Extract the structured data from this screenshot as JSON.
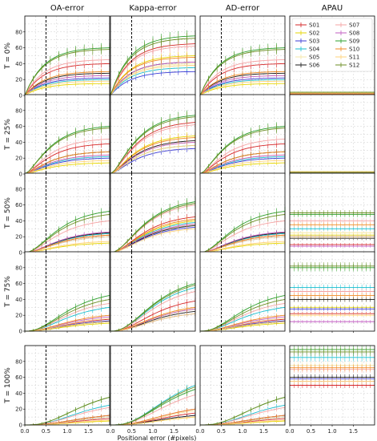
{
  "chart_data": {
    "type": "line",
    "columns": [
      "OA-error",
      "Kappa-error",
      "AD-error",
      "APAU"
    ],
    "rows": [
      "T = 0%",
      "T = 25%",
      "T = 50%",
      "T = 75%",
      "T = 100%"
    ],
    "xlabel": "Positional error (#pixels)",
    "xlim": [
      0.0,
      2.0
    ],
    "xticks": [
      "0.0",
      "0.5",
      "1.0",
      "1.5",
      "0.0",
      "0.5",
      "1.0",
      "1.5",
      "0.0",
      "0.5",
      "1.0",
      "1.5",
      "0.0",
      "0.5",
      "1.0",
      "1.5"
    ],
    "ylim": [
      0,
      100
    ],
    "yticks": [
      "0",
      "20",
      "40",
      "60",
      "80"
    ],
    "vline_x": 0.5,
    "grid": true,
    "legend_position": "top-right, inside APAU panel of first row",
    "series": [
      {
        "name": "S01",
        "color": "#d62728"
      },
      {
        "name": "S02",
        "color": "#e6d600"
      },
      {
        "name": "S03",
        "color": "#3b3bd6"
      },
      {
        "name": "S04",
        "color": "#17becf"
      },
      {
        "name": "S05",
        "color": "#f5e7a8"
      },
      {
        "name": "S06",
        "color": "#1a1a1a"
      },
      {
        "name": "S07",
        "color": "#f4a3a3"
      },
      {
        "name": "S08",
        "color": "#c25ec2"
      },
      {
        "name": "S09",
        "color": "#2ca02c"
      },
      {
        "name": "S10",
        "color": "#f08a24"
      },
      {
        "name": "S11",
        "color": "#ffd37a"
      },
      {
        "name": "S12",
        "color": "#6b8e23"
      }
    ],
    "metric_final_values": {
      "OA-error": [
        [
          40,
          15,
          22,
          20,
          25,
          28,
          45,
          25,
          60,
          30,
          18,
          58
        ],
        [
          38,
          14,
          20,
          22,
          24,
          28,
          44,
          24,
          60,
          28,
          17,
          58
        ],
        [
          22,
          12,
          20,
          24,
          20,
          25,
          40,
          26,
          52,
          22,
          14,
          48
        ],
        [
          15,
          10,
          13,
          30,
          16,
          12,
          35,
          18,
          45,
          20,
          12,
          40
        ],
        [
          8,
          5,
          10,
          25,
          10,
          12,
          22,
          12,
          35,
          12,
          6,
          35
        ]
      ],
      "Kappa-error": [
        [
          65,
          50,
          30,
          35,
          40,
          42,
          62,
          42,
          75,
          48,
          38,
          72
        ],
        [
          65,
          48,
          32,
          36,
          40,
          42,
          62,
          40,
          74,
          46,
          36,
          72
        ],
        [
          45,
          40,
          32,
          38,
          35,
          34,
          60,
          36,
          64,
          42,
          30,
          62
        ],
        [
          38,
          28,
          22,
          55,
          30,
          25,
          50,
          28,
          60,
          30,
          22,
          58
        ],
        [
          15,
          10,
          12,
          50,
          18,
          12,
          38,
          20,
          45,
          20,
          10,
          48
        ]
      ],
      "AD-error": [
        [
          40,
          15,
          22,
          20,
          25,
          28,
          45,
          25,
          60,
          30,
          18,
          58
        ],
        [
          38,
          14,
          20,
          22,
          24,
          28,
          44,
          24,
          60,
          28,
          17,
          58
        ],
        [
          22,
          12,
          20,
          24,
          20,
          25,
          40,
          26,
          52,
          22,
          14,
          48
        ],
        [
          15,
          10,
          13,
          30,
          16,
          12,
          35,
          18,
          45,
          20,
          12,
          40
        ],
        [
          8,
          5,
          10,
          25,
          10,
          12,
          22,
          12,
          35,
          12,
          6,
          35
        ]
      ]
    },
    "apau_levels": [
      [
        0,
        1,
        2,
        3,
        1,
        2,
        3,
        1,
        4,
        2,
        3,
        4
      ],
      [
        0,
        1,
        2,
        2,
        1,
        2,
        3,
        1,
        3,
        2,
        3,
        2
      ],
      [
        10,
        22,
        20,
        30,
        25,
        18,
        40,
        8,
        48,
        35,
        20,
        50
      ],
      [
        22,
        30,
        28,
        55,
        40,
        40,
        50,
        12,
        80,
        45,
        20,
        82
      ],
      [
        50,
        55,
        58,
        85,
        75,
        60,
        70,
        55,
        95,
        72,
        55,
        92
      ]
    ]
  }
}
